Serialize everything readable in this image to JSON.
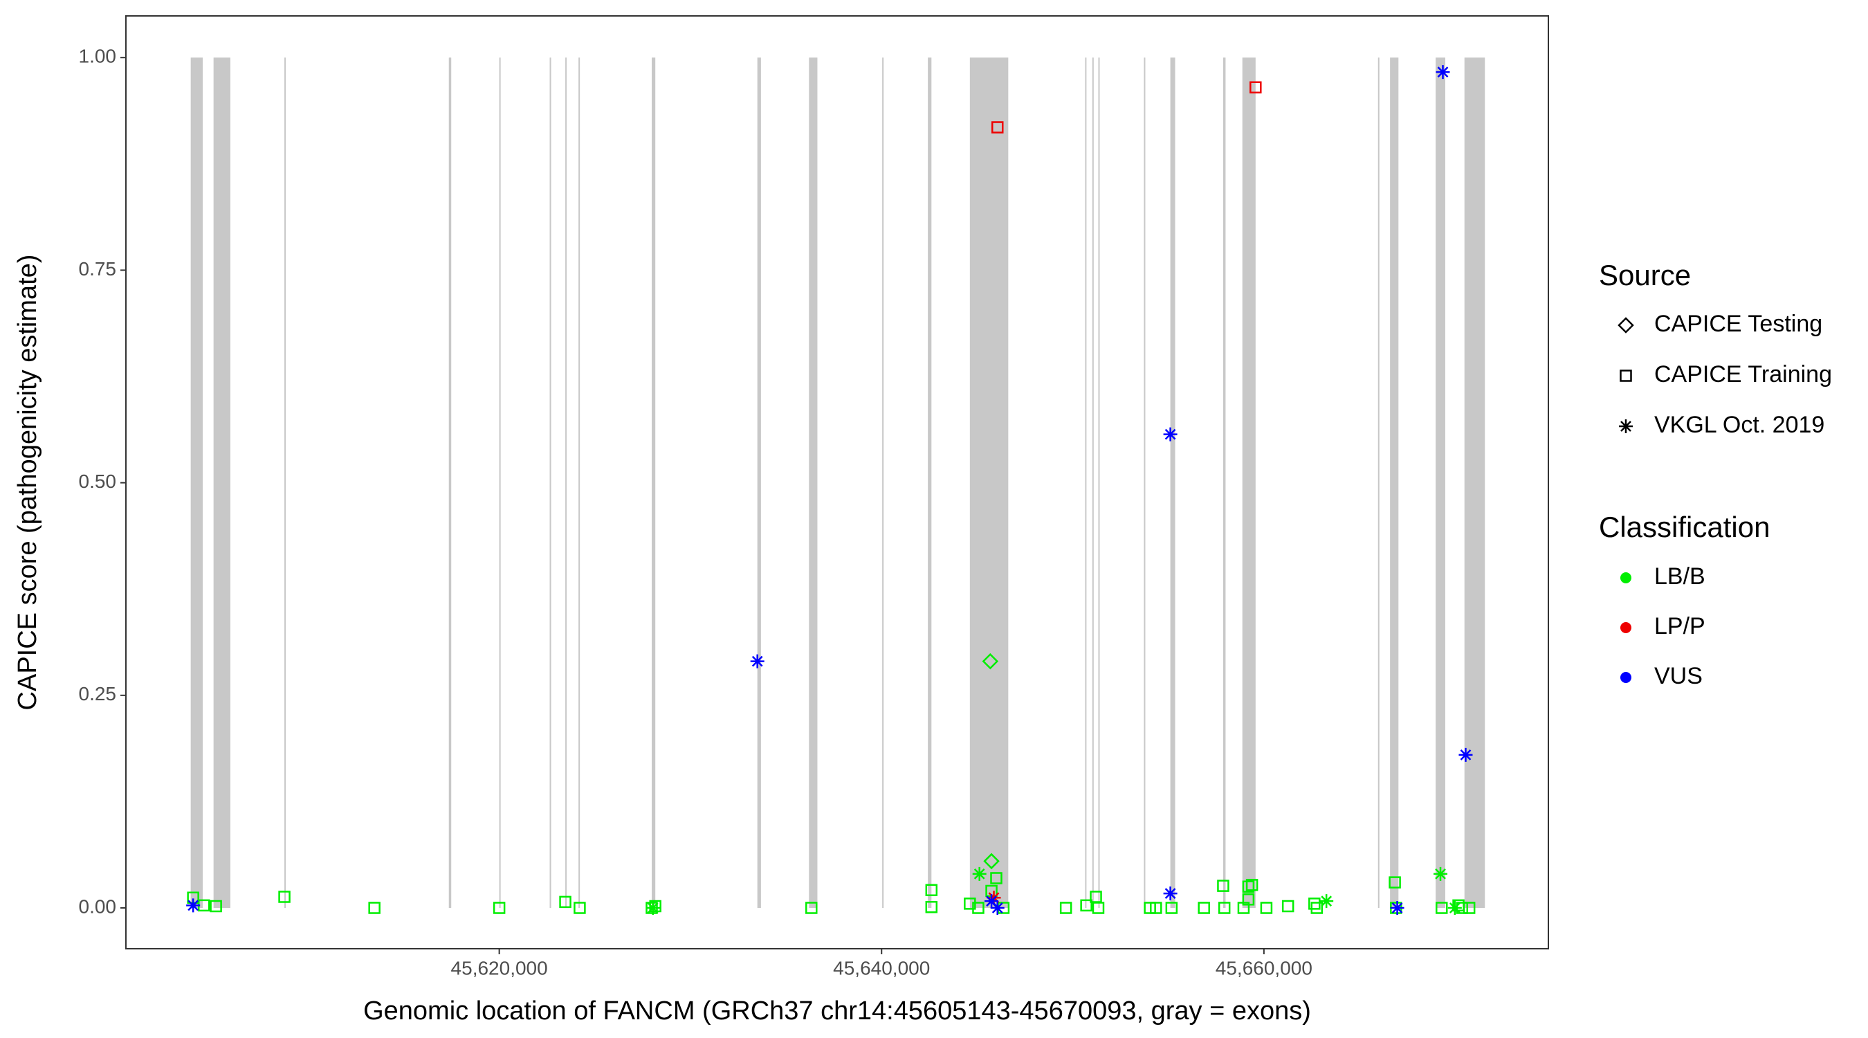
{
  "chart_data": {
    "type": "scatter",
    "x_label": "Genomic location of FANCM (GRCh37 chr14:45605143-45670093, gray = exons)",
    "y_label": "CAPICE score (pathogenicity estimate)",
    "xlim": [
      45600470,
      45674880
    ],
    "ylim": [
      -0.048,
      1.049
    ],
    "xticks": [
      {
        "value": 45620000,
        "label": "45,620,000"
      },
      {
        "value": 45640000,
        "label": "45,640,000"
      },
      {
        "value": 45660000,
        "label": "45,660,000"
      }
    ],
    "yticks": [
      {
        "value": 0,
        "label": "0.00"
      },
      {
        "value": 0.25,
        "label": "0.25"
      },
      {
        "value": 0.5,
        "label": "0.50"
      },
      {
        "value": 0.75,
        "label": "0.75"
      },
      {
        "value": 1,
        "label": "1.00"
      }
    ],
    "exon_color": "#c8c8c8",
    "exons": [
      [
        45603860,
        45604488
      ],
      [
        45605054,
        45605933
      ],
      [
        45608759,
        45608822
      ],
      [
        45617362,
        45617488
      ],
      [
        45620000,
        45620063
      ],
      [
        45622638,
        45622700
      ],
      [
        45623454,
        45623517
      ],
      [
        45624145,
        45624208
      ],
      [
        45627976,
        45628164
      ],
      [
        45633502,
        45633690
      ],
      [
        45636202,
        45636642
      ],
      [
        45640033,
        45640096
      ],
      [
        45642420,
        45642608
      ],
      [
        45644618,
        45646627
      ],
      [
        45650646,
        45650709
      ],
      [
        45651023,
        45651086
      ],
      [
        45651337,
        45651400
      ],
      [
        45653724,
        45653787
      ],
      [
        45655105,
        45655356
      ],
      [
        45657868,
        45657994
      ],
      [
        45658873,
        45659564
      ],
      [
        45665969,
        45666032
      ],
      [
        45666598,
        45667037
      ],
      [
        45668984,
        45669486
      ],
      [
        45670491,
        45671559
      ]
    ],
    "legend": {
      "source": {
        "title": "Source",
        "items": [
          {
            "name": "CAPICE Testing",
            "shape": "diamond"
          },
          {
            "name": "CAPICE Training",
            "shape": "square"
          },
          {
            "name": "VKGL Oct. 2019",
            "shape": "asterisk"
          }
        ]
      },
      "classification": {
        "title": "Classification",
        "items": [
          {
            "name": "LB/B",
            "color": "#00ee00"
          },
          {
            "name": "LP/P",
            "color": "#ee0000"
          },
          {
            "name": "VUS",
            "color": "#0000ff"
          }
        ]
      }
    },
    "series": [
      {
        "source": "CAPICE Training",
        "classification": "LB/B",
        "x": [
          45603986,
          45604551,
          45605179,
          45608760,
          45613469,
          45620000,
          45623454,
          45624208,
          45627976,
          45628164,
          45636328,
          45642608,
          45642608,
          45644618,
          45645999,
          45645748,
          45646376,
          45645057,
          45649642,
          45650709,
          45651212,
          45651337,
          45654038,
          45654352,
          45655168,
          45656864,
          45657868,
          45657931,
          45658936,
          45659187,
          45659376,
          45659187,
          45660129,
          45661260,
          45662641,
          45662767,
          45666849,
          45666912,
          45669298,
          45670177,
          45670366,
          45670742
        ],
        "values": [
          0.012,
          0.003,
          0.002,
          0.013,
          0,
          0,
          0.007,
          0,
          0,
          0.002,
          0,
          0.021,
          0.001,
          0.005,
          0.035,
          0.02,
          0,
          0,
          0,
          0.003,
          0.013,
          0,
          0,
          0,
          0,
          0,
          0.026,
          0,
          0,
          0.025,
          0.027,
          0.01,
          0,
          0.002,
          0.005,
          0,
          0.03,
          0,
          0,
          0.003,
          0,
          0
        ]
      },
      {
        "source": "CAPICE Training",
        "classification": "LP/P",
        "x": [
          45646062,
          45659564
        ],
        "values": [
          0.918,
          0.965
        ]
      },
      {
        "source": "CAPICE Testing",
        "classification": "LB/B",
        "x": [
          45645748,
          45645685
        ],
        "values": [
          0.055,
          0.29
        ]
      },
      {
        "source": "VKGL Oct. 2019",
        "classification": "LB/B",
        "x": [
          45628038,
          45645120,
          45663269,
          45669235,
          45669989
        ],
        "values": [
          0,
          0.04,
          0.008,
          0.04,
          0
        ]
      },
      {
        "source": "VKGL Oct. 2019",
        "classification": "LP/P",
        "x": [
          45645874
        ],
        "values": [
          0.012
        ]
      },
      {
        "source": "VKGL Oct. 2019",
        "classification": "VUS",
        "x": [
          45603986,
          45633502,
          45645748,
          45646062,
          45655105,
          45655105,
          45666974,
          45669361,
          45670554
        ],
        "values": [
          0.003,
          0.29,
          0.008,
          0,
          0.557,
          0.017,
          0,
          0.983,
          0.18
        ]
      }
    ]
  }
}
